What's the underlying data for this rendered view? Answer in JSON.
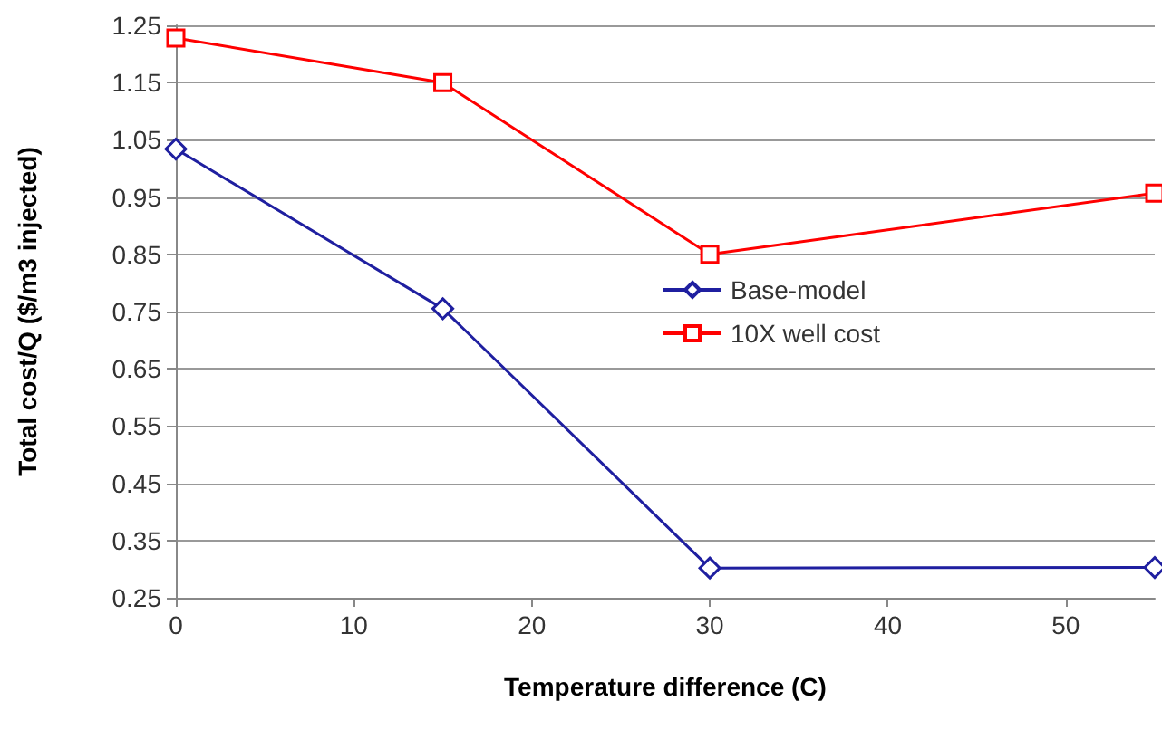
{
  "chart_data": {
    "type": "line",
    "xlabel": "Temperature difference (C)",
    "ylabel": "Total cost/Q ($/m3 injected)",
    "x": [
      0,
      15,
      30,
      55
    ],
    "series": [
      {
        "name": "Base-model",
        "color": "#1f1fa0",
        "values": [
          1.034,
          0.755,
          0.302,
          0.303
        ],
        "marker": "diamond"
      },
      {
        "name": "10X well cost",
        "color": "#ff0000",
        "values": [
          1.228,
          1.15,
          0.85,
          0.957
        ],
        "marker": "square"
      }
    ],
    "xlim": [
      0,
      55
    ],
    "xticks": [
      0,
      10,
      20,
      30,
      40,
      50
    ],
    "ylim": [
      0.25,
      1.25
    ],
    "yticks": [
      0.25,
      0.35,
      0.45,
      0.55,
      0.65,
      0.75,
      0.85,
      0.95,
      1.05,
      1.15,
      1.25
    ],
    "grid": "y",
    "legend": "right"
  }
}
